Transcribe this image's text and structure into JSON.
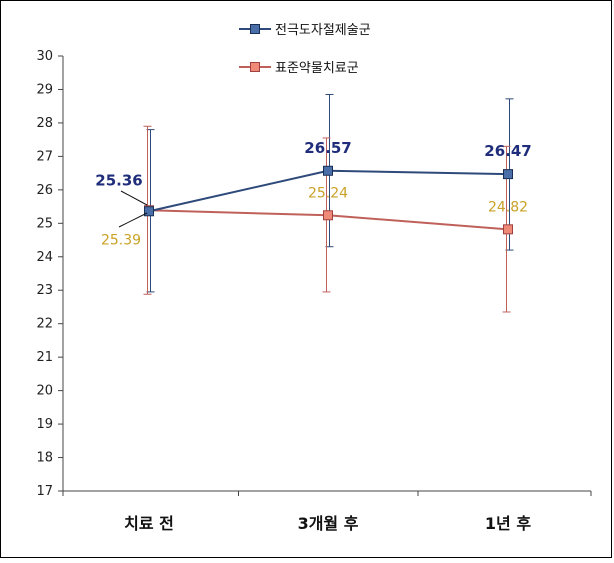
{
  "chart_data": {
    "type": "line",
    "title": "",
    "xlabel": "",
    "ylabel": "",
    "categories": [
      "치료 전",
      "3개월 후",
      "1년 후"
    ],
    "ylim": [
      17,
      30
    ],
    "yticks": [
      17,
      18,
      19,
      20,
      21,
      22,
      23,
      24,
      25,
      26,
      27,
      28,
      29,
      30
    ],
    "legend_position": "top-right",
    "grid": false,
    "series": [
      {
        "name": "전극도자절제술군",
        "color": "#2e4a7a",
        "marker_color": "#4a6fa8",
        "values": [
          25.36,
          26.57,
          26.47
        ],
        "labels": [
          "25.36",
          "26.57",
          "26.47"
        ],
        "err_low": [
          22.95,
          24.3,
          24.2
        ],
        "err_high": [
          27.8,
          28.85,
          28.72
        ]
      },
      {
        "name": "표준약물치료군",
        "color": "#c0605a",
        "marker_color": "#f08a78",
        "values": [
          25.39,
          25.24,
          24.82
        ],
        "labels": [
          "25.39",
          "25.24",
          "24.82"
        ],
        "err_low": [
          22.88,
          22.95,
          22.35
        ],
        "err_high": [
          27.9,
          27.55,
          27.3
        ]
      }
    ]
  }
}
